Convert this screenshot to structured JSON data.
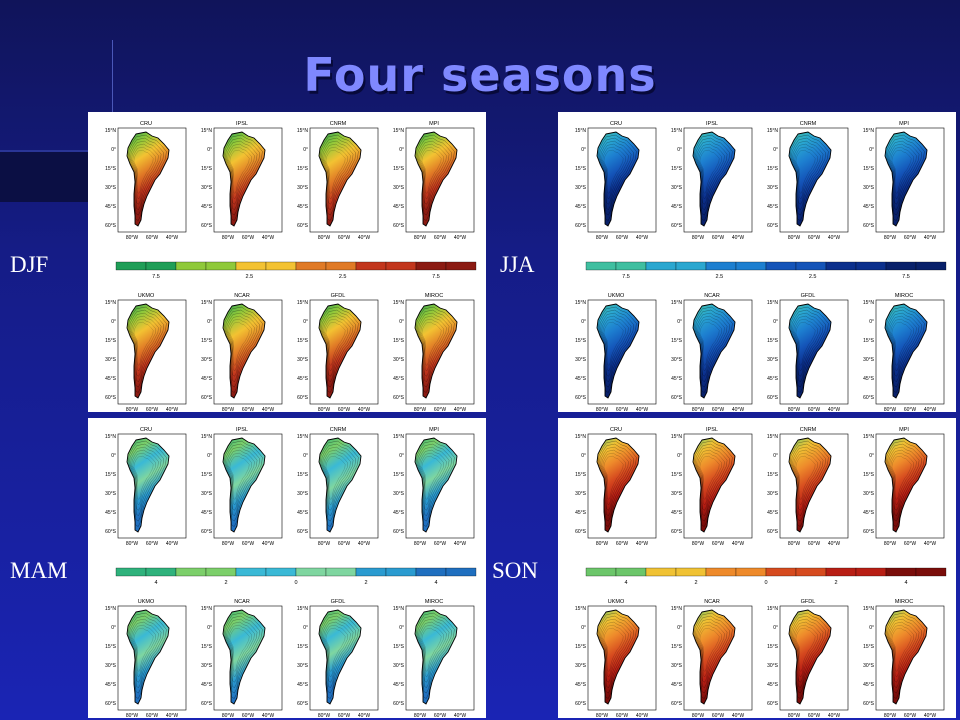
{
  "slide": {
    "title": "Four seasons"
  },
  "seasons": [
    {
      "label": "DJF",
      "colorbar_ticks": [
        "7.5",
        "2.5",
        "2.5",
        "7.5"
      ],
      "top_models": [
        "CRU",
        "IPSL",
        "CNRM",
        "MPI"
      ],
      "bottom_models": [
        "UKMO",
        "NCAR",
        "GFDL",
        "MIROC"
      ],
      "palette": [
        "#1f9e57",
        "#8fc93a",
        "#f3c232",
        "#e07a26",
        "#c2361d",
        "#8b1a12"
      ]
    },
    {
      "label": "JJA",
      "colorbar_ticks": [
        "7.5",
        "2.5",
        "2.5",
        "7.5"
      ],
      "top_models": [
        "CRU",
        "IPSL",
        "CNRM",
        "MPI"
      ],
      "bottom_models": [
        "UKMO",
        "NCAR",
        "GFDL",
        "MIROC"
      ],
      "palette": [
        "#3fbfa0",
        "#2aa7d0",
        "#1d7fd0",
        "#1454b8",
        "#0b2f8c",
        "#08206a"
      ]
    },
    {
      "label": "MAM",
      "colorbar_ticks": [
        "4",
        "2",
        "0",
        "2",
        "4"
      ],
      "top_models": [
        "CRU",
        "IPSL",
        "CNRM",
        "MPI"
      ],
      "bottom_models": [
        "UKMO",
        "NCAR",
        "GFDL",
        "MIROC"
      ],
      "palette": [
        "#2fb27c",
        "#7ccf6a",
        "#3ab9d6",
        "#7fd6a0",
        "#2a9bd0",
        "#1f6fbf"
      ]
    },
    {
      "label": "SON",
      "colorbar_ticks": [
        "4",
        "2",
        "0",
        "2",
        "4"
      ],
      "top_models": [
        "CRU",
        "IPSL",
        "CNRM",
        "MPI"
      ],
      "bottom_models": [
        "UKMO",
        "NCAR",
        "GFDL",
        "MIROC"
      ],
      "palette": [
        "#6cc66a",
        "#f0c234",
        "#ee8a2b",
        "#d64b1f",
        "#b81e14",
        "#7a0d0a"
      ]
    }
  ],
  "axis_labels": {
    "lat": [
      "15°N",
      "0°",
      "15°S",
      "30°S",
      "45°S",
      "60°S"
    ],
    "lon": [
      "80°W",
      "60°W",
      "40°W"
    ]
  }
}
